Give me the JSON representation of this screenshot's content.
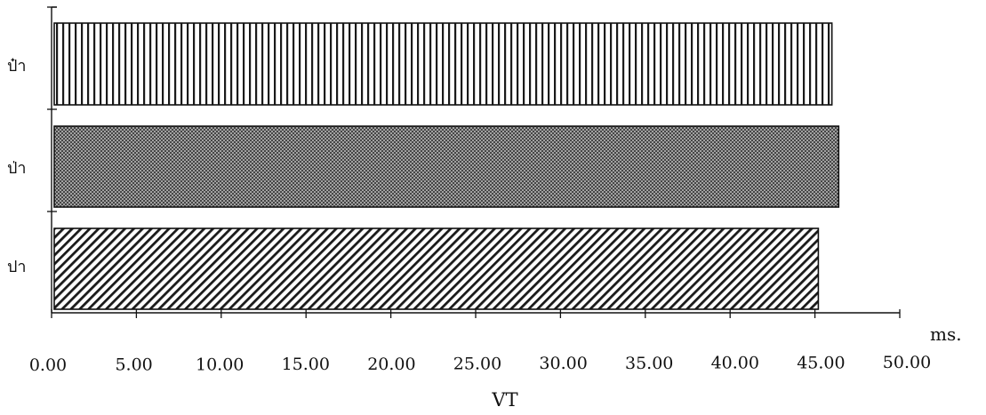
{
  "chart_data": {
    "type": "bar",
    "orientation": "horizontal",
    "categories": [
      "ป๋า",
      "ป่า",
      "ปา"
    ],
    "values": [
      46.0,
      46.4,
      45.2
    ],
    "xlabel": "VT",
    "unit": "ms.",
    "xlim": [
      0,
      50
    ],
    "xticks": [
      "0.00",
      "5.00",
      "10.00",
      "15.00",
      "20.00",
      "25.00",
      "30.00",
      "35.00",
      "40.00",
      "45.00",
      "50.00"
    ],
    "patterns": [
      "vertical-stripes",
      "crosshatch",
      "diagonal-stripes"
    ],
    "grid": false,
    "legend": "none"
  }
}
